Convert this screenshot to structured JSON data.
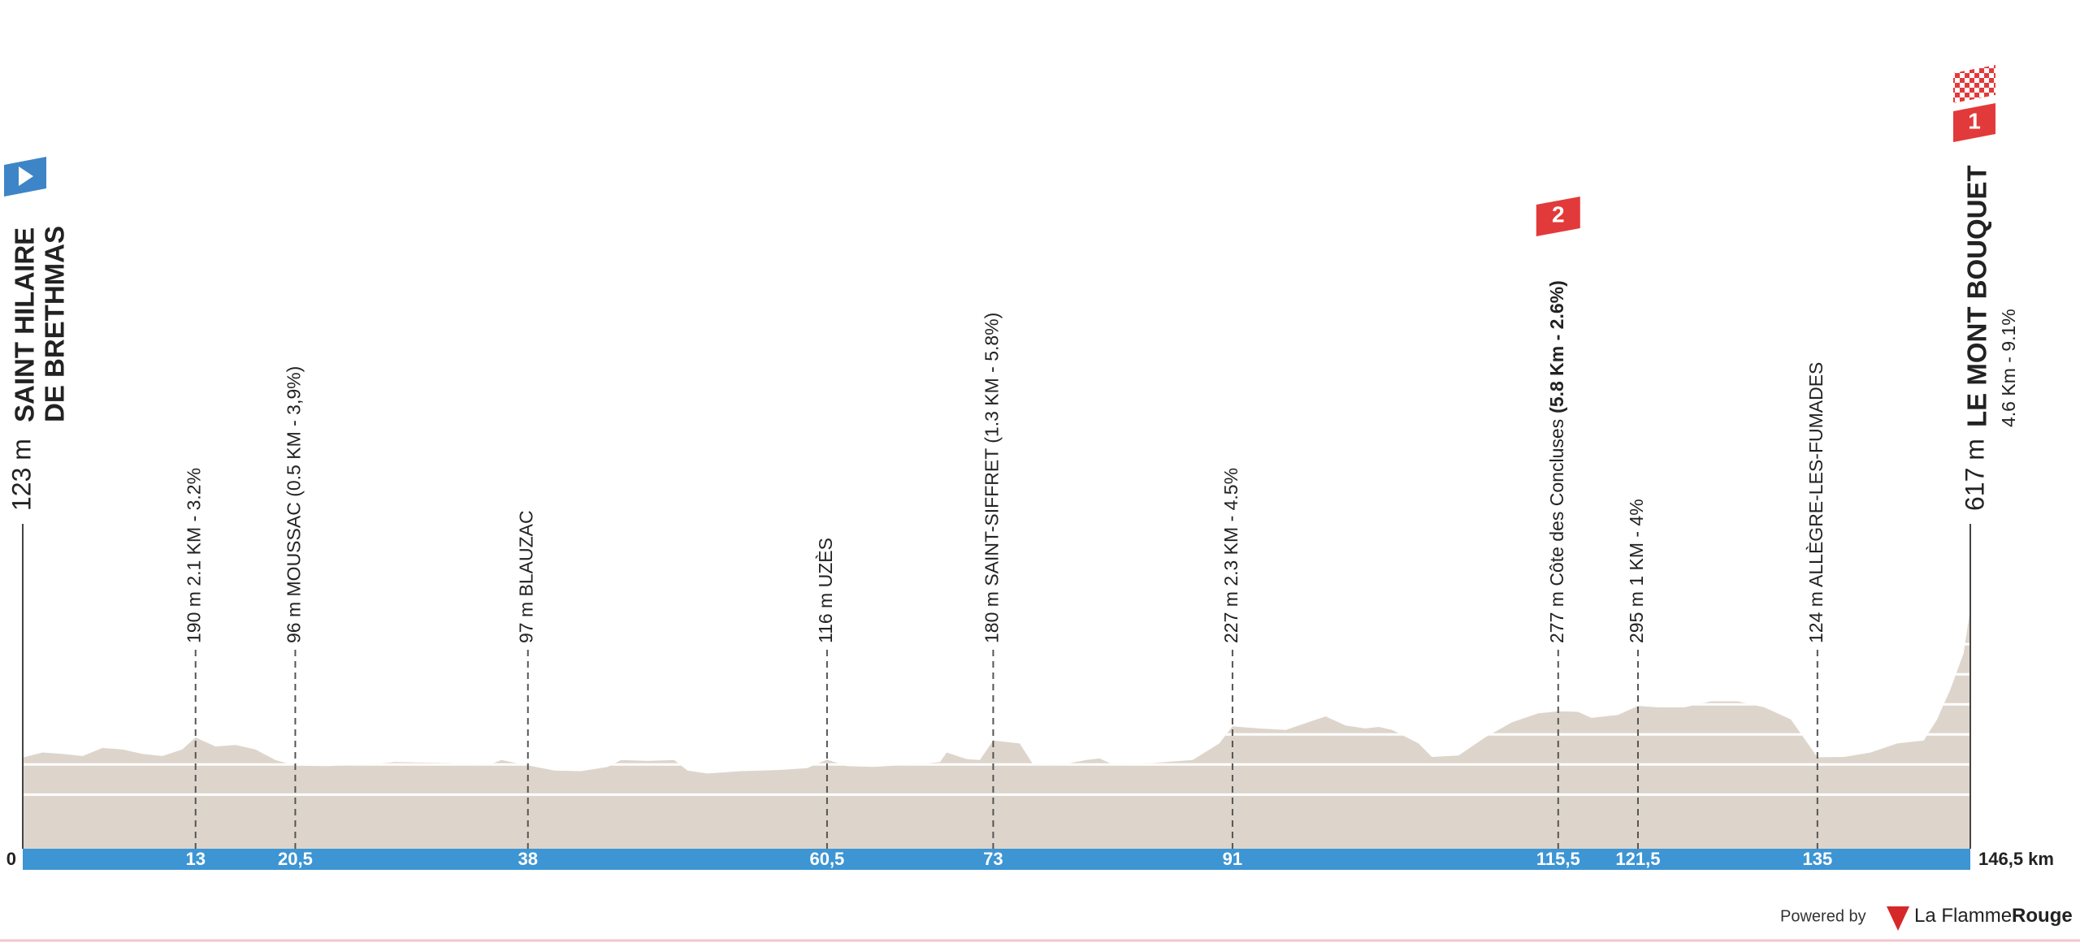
{
  "chart_data": {
    "type": "profile",
    "x": [
      0,
      1.5,
      3,
      4.5,
      6,
      7.5,
      9,
      10.5,
      12,
      13,
      14.5,
      16,
      17.5,
      19,
      20.5,
      23,
      26,
      28,
      32,
      35,
      36,
      38,
      40,
      42,
      44,
      45,
      47,
      49,
      50,
      51.5,
      54,
      57,
      59,
      60.5,
      62,
      64,
      67,
      69,
      69.5,
      71,
      72,
      73,
      75,
      76,
      78,
      80,
      81,
      82,
      85,
      88,
      90,
      91,
      93,
      95,
      97,
      98,
      99.5,
      101,
      102,
      103,
      105,
      106,
      108,
      110,
      112,
      114,
      115.5,
      117,
      118,
      120,
      121.5,
      123,
      125,
      127,
      129,
      131,
      133,
      135,
      137,
      139,
      141,
      142,
      143,
      144,
      145,
      146,
      146.5
    ],
    "values": [
      123,
      140,
      135,
      128,
      155,
      150,
      135,
      128,
      150,
      190,
      160,
      165,
      150,
      115,
      96,
      95,
      100,
      108,
      105,
      97,
      115,
      97,
      80,
      78,
      92,
      115,
      112,
      115,
      80,
      70,
      78,
      82,
      88,
      116,
      95,
      92,
      100,
      108,
      140,
      118,
      115,
      180,
      170,
      100,
      98,
      115,
      120,
      100,
      105,
      115,
      170,
      227,
      220,
      215,
      245,
      260,
      230,
      220,
      225,
      215,
      170,
      125,
      130,
      190,
      240,
      270,
      277,
      275,
      255,
      265,
      295,
      290,
      290,
      310,
      310,
      290,
      250,
      124,
      125,
      140,
      170,
      175,
      180,
      250,
      350,
      470,
      617
    ],
    "color": "#ddd5cc",
    "xlim": [
      0,
      146.5
    ],
    "ylim": [
      -180,
      1000
    ],
    "yticks": [
      0,
      100,
      200,
      300,
      400,
      500,
      600
    ],
    "grid": true,
    "xticks": [
      0,
      13,
      {
        "value": 20.5,
        "label": "20,5"
      },
      38,
      {
        "value": 60.5,
        "label": "60,5"
      },
      73,
      91,
      {
        "value": 115.5,
        "label": "115,5"
      },
      {
        "value": 121.5,
        "label": "121,5"
      },
      135,
      {
        "value": 146.5,
        "label": "146,5 km"
      }
    ],
    "start": {
      "altitude": "123 m",
      "name": [
        "SAINT HILAIRE",
        "DE BRETHMAS"
      ]
    },
    "finish": {
      "altitude": "617 m",
      "name": "LE MONT BOUQUET",
      "climb": "4.6 Km - 9.1%",
      "category": "1"
    },
    "waypoints": [
      {
        "x": 13,
        "label": "190 m 2.1 KM - 3.2%"
      },
      {
        "x": 20.5,
        "label": "96 m MOUSSAC (0.5 KM - 3,9%)"
      },
      {
        "x": 38,
        "label": "97 m BLAUZAC"
      },
      {
        "x": 60.5,
        "label": "116 m UZÈS"
      },
      {
        "x": 73,
        "label": "180 m SAINT-SIFFRET (1.3 KM - 5.8%)"
      },
      {
        "x": 91,
        "label": "227 m 2.3 KM - 4.5%"
      },
      {
        "x": 115.5,
        "label": "277 m Côte des Concluses",
        "label_bold": "(5.8 Km - 2.6%)",
        "category": "2"
      },
      {
        "x": 121.5,
        "label": "295 m 1 KM - 4%"
      },
      {
        "x": 135,
        "label": "124 m ALLÈGRE-LES-FUMADES"
      }
    ]
  },
  "footer": {
    "powered": "Powered by",
    "brand": "La Flamme",
    "brand_bold": "Rouge"
  }
}
